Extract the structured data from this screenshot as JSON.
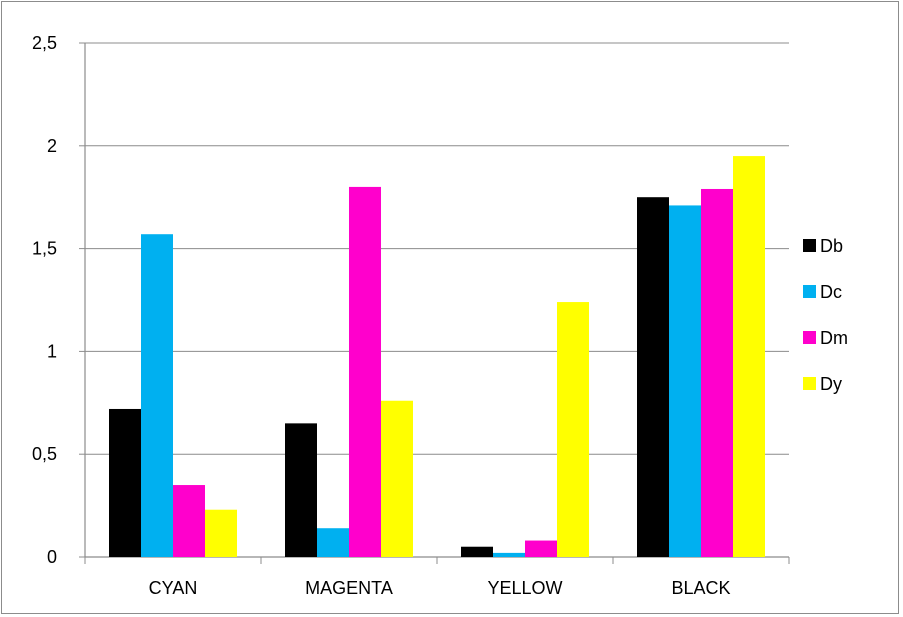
{
  "chart_data": {
    "type": "bar",
    "categories": [
      "CYAN",
      "MAGENTA",
      "YELLOW",
      "BLACK"
    ],
    "series": [
      {
        "name": "Db",
        "color": "#000000",
        "values": [
          0.72,
          0.65,
          0.05,
          1.75
        ]
      },
      {
        "name": "Dc",
        "color": "#00b0f0",
        "values": [
          1.57,
          0.14,
          0.02,
          1.71
        ]
      },
      {
        "name": "Dm",
        "color": "#ff00cc",
        "values": [
          0.35,
          1.8,
          0.08,
          1.79
        ]
      },
      {
        "name": "Dy",
        "color": "#ffff00",
        "values": [
          0.23,
          0.76,
          1.24,
          1.95
        ]
      }
    ],
    "ylim": [
      0,
      2.5
    ],
    "yticks": [
      "0",
      "0,5",
      "1",
      "1,5",
      "2",
      "2,5"
    ],
    "grid": true,
    "legend_position": "right"
  }
}
